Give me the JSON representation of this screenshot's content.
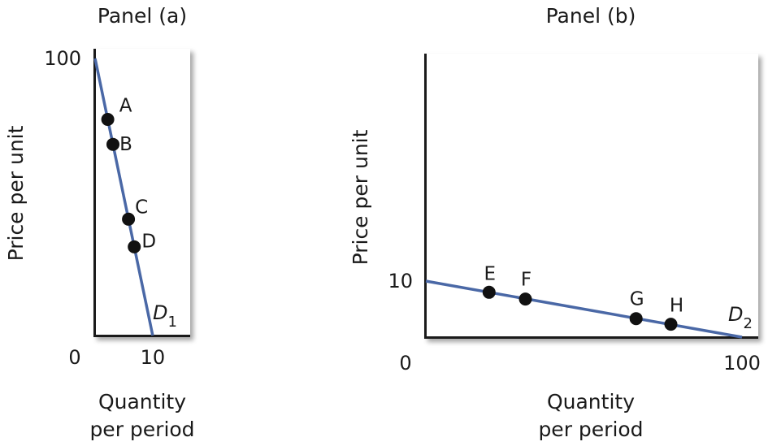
{
  "chart_data": [
    {
      "type": "line",
      "title": "Panel (a)",
      "xlabel": [
        "Quantity",
        "per period"
      ],
      "ylabel": "Price per unit",
      "xlim": [
        0,
        16.5
      ],
      "ylim": [
        0,
        100
      ],
      "x_ticks": [
        {
          "value": 0,
          "label": "0"
        },
        {
          "value": 10,
          "label": "10"
        }
      ],
      "y_ticks": [
        {
          "value": 100,
          "label": "100"
        }
      ],
      "series": [
        {
          "name": "D1",
          "name_main": "D",
          "name_sub": "1",
          "color": "#4a68a6",
          "x": [
            0,
            10
          ],
          "y": [
            100,
            0
          ]
        }
      ],
      "points": [
        {
          "label": "A",
          "x": 2.2,
          "y": 78
        },
        {
          "label": "B",
          "x": 3.1,
          "y": 69
        },
        {
          "label": "C",
          "x": 5.8,
          "y": 42
        },
        {
          "label": "D",
          "x": 6.8,
          "y": 32
        }
      ],
      "grid": false
    },
    {
      "type": "line",
      "title": "Panel (b)",
      "xlabel": [
        "Quantity",
        "per period"
      ],
      "ylabel": "Price per unit",
      "xlim": [
        0,
        100
      ],
      "ylim": [
        0,
        50
      ],
      "x_ticks": [
        {
          "value": 0,
          "label": "0"
        },
        {
          "value": 100,
          "label": "100"
        }
      ],
      "y_ticks": [
        {
          "value": 10,
          "label": "10"
        }
      ],
      "series": [
        {
          "name": "D2",
          "name_main": "D",
          "name_sub": "2",
          "color": "#4a68a6",
          "x": [
            0,
            100
          ],
          "y": [
            10,
            0
          ]
        }
      ],
      "points": [
        {
          "label": "E",
          "x": 20,
          "y": 8
        },
        {
          "label": "F",
          "x": 31.5,
          "y": 6.8
        },
        {
          "label": "G",
          "x": 66.5,
          "y": 3.3
        },
        {
          "label": "H",
          "x": 77.5,
          "y": 2.3
        }
      ],
      "grid": false
    }
  ]
}
